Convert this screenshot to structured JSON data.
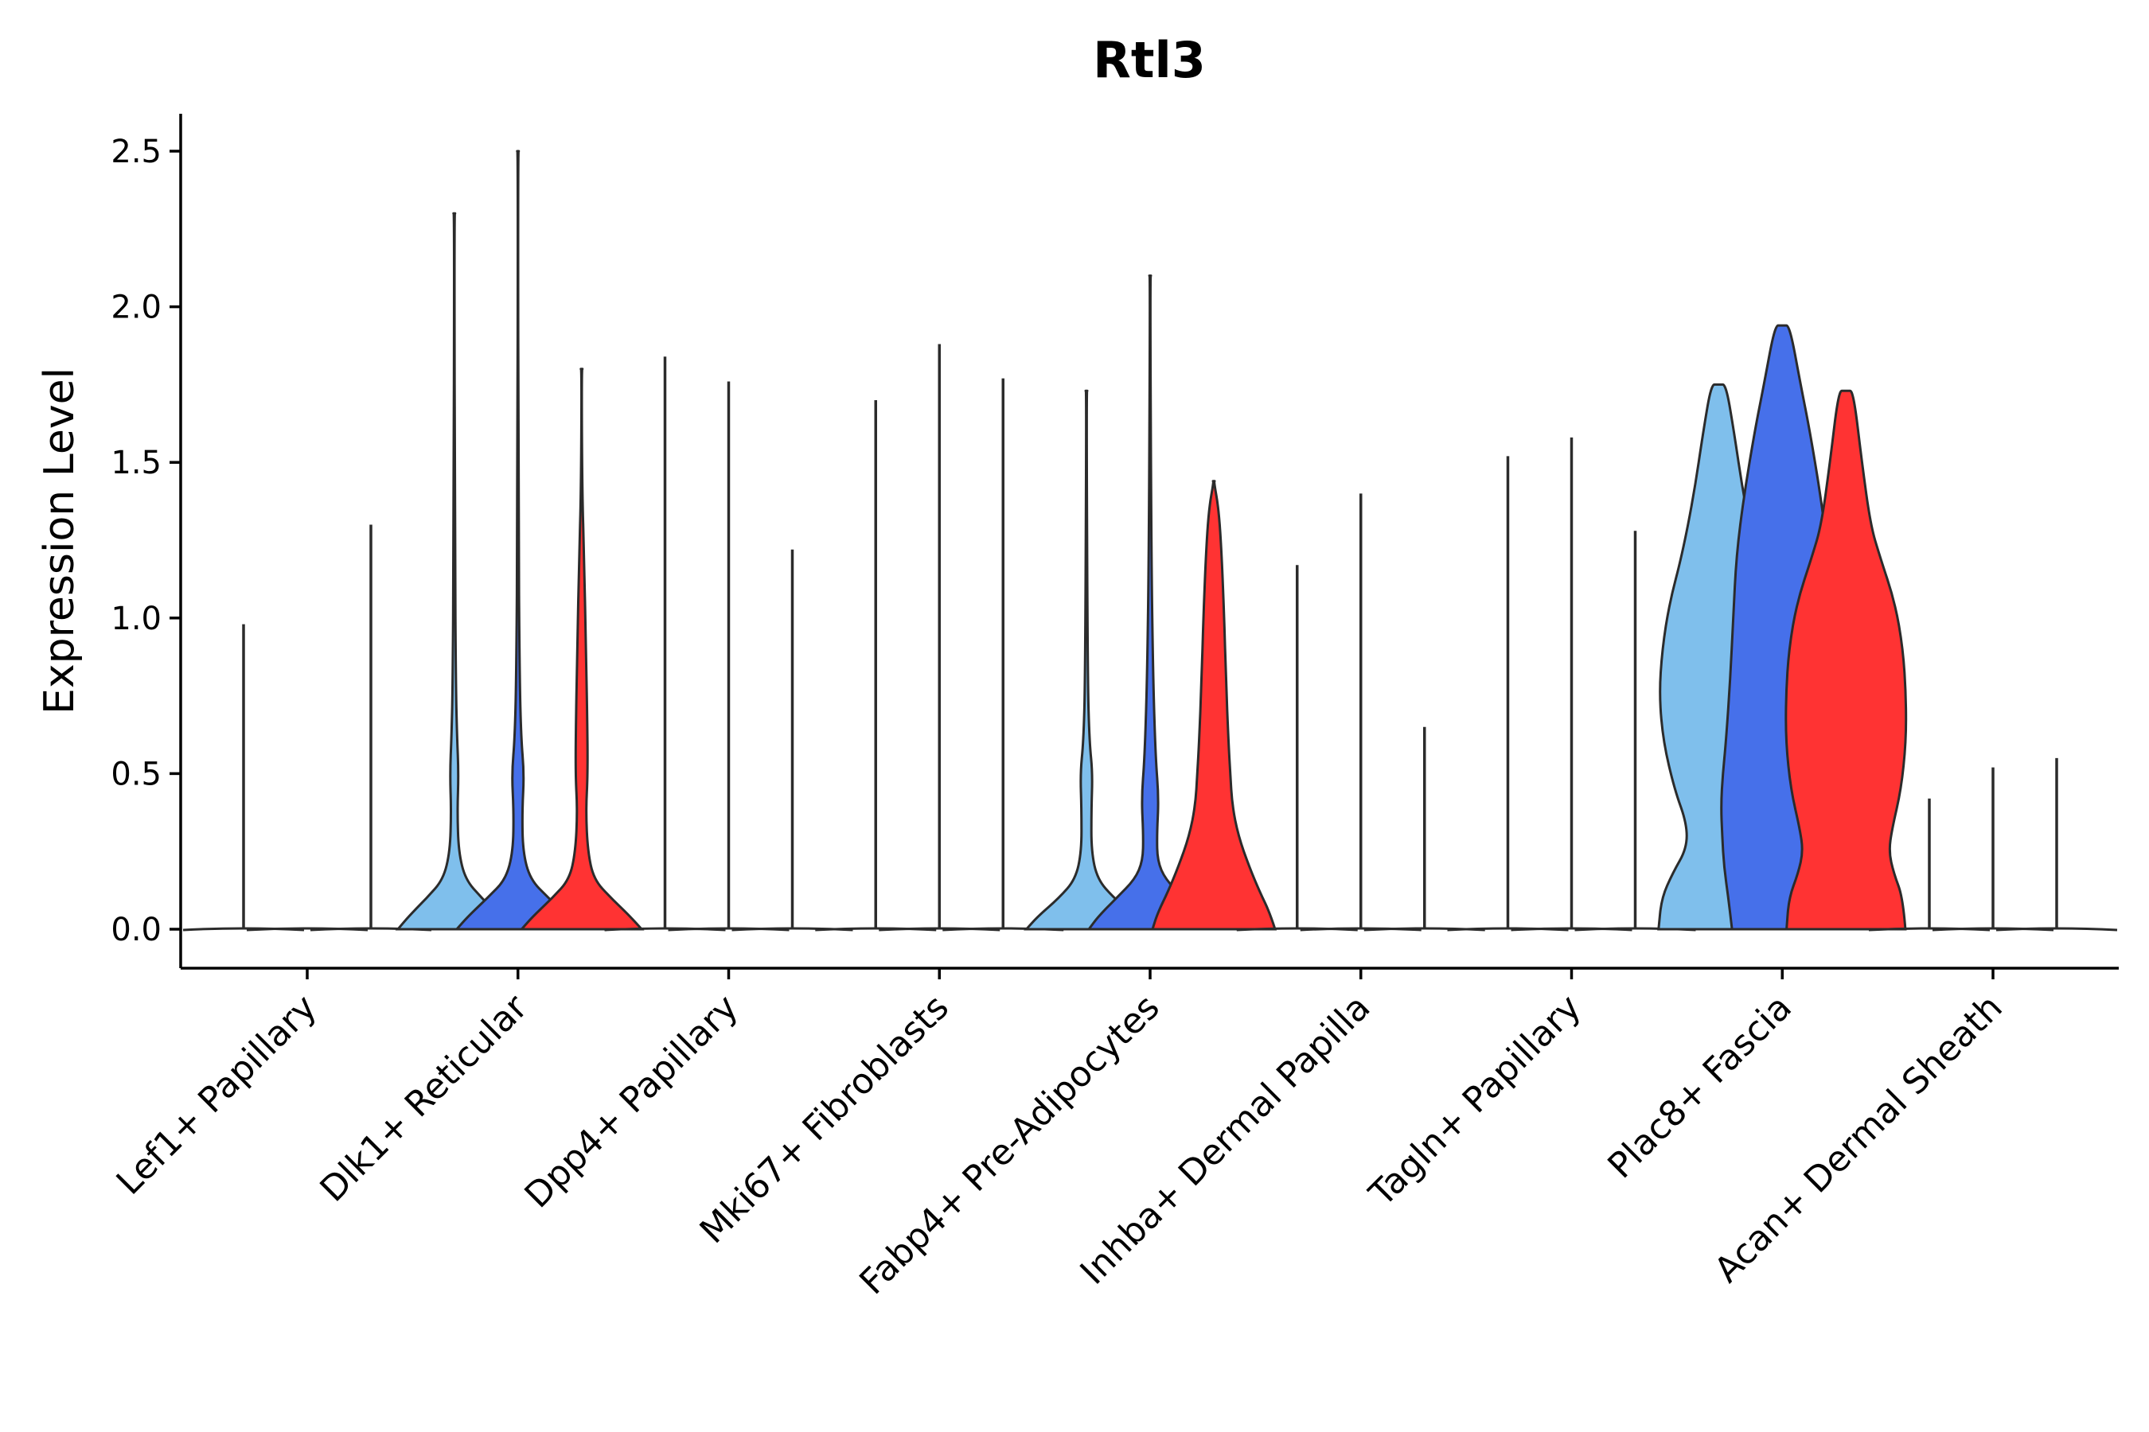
{
  "chart_data": {
    "type": "violin",
    "title": "Rtl3",
    "xlabel": "",
    "ylabel": "Expression Level",
    "ylim": [
      -0.13,
      2.62
    ],
    "yticks": [
      0.0,
      0.5,
      1.0,
      1.5,
      2.0,
      2.5
    ],
    "ytick_labels": [
      "0.0",
      "0.5",
      "1.0",
      "1.5",
      "2.0",
      "2.5"
    ],
    "grid": false,
    "legend": "none",
    "series_colors": [
      "#7fbfec",
      "#4670ea",
      "#ff3333"
    ],
    "categories": [
      "Lef1+ Papillary",
      "Dlk1+ Reticular",
      "Dpp4+ Papillary",
      "Mki67+ Fibroblasts",
      "Fabp4+ Pre-Adipocytes",
      "Inhba+ Dermal Papilla",
      "Tagln+ Papillary",
      "Plac8+ Fascia",
      "Acan+ Dermal Sheath"
    ],
    "violins": [
      [
        {
          "max": 0.98,
          "profile": [
            [
              0,
              0.0
            ],
            [
              0.01,
              0.02
            ],
            [
              0.03,
              0.004
            ],
            [
              0.98,
              0.0
            ]
          ]
        },
        {
          "max": 0.0,
          "profile": [
            [
              0,
              0.0
            ]
          ]
        },
        {
          "max": 1.3,
          "profile": [
            [
              0,
              0.0
            ],
            [
              0.01,
              0.02
            ],
            [
              0.03,
              0.004
            ],
            [
              1.3,
              0.0
            ]
          ]
        }
      ],
      [
        {
          "max": 2.3,
          "profile": [
            [
              0,
              0.92
            ],
            [
              0.04,
              0.75
            ],
            [
              0.1,
              0.45
            ],
            [
              0.16,
              0.18
            ],
            [
              0.25,
              0.07
            ],
            [
              0.38,
              0.05
            ],
            [
              0.5,
              0.07
            ],
            [
              0.62,
              0.045
            ],
            [
              0.8,
              0.025
            ],
            [
              1.2,
              0.012
            ],
            [
              2.3,
              0.0
            ]
          ]
        },
        {
          "max": 2.5,
          "profile": [
            [
              0,
              1.0
            ],
            [
              0.04,
              0.82
            ],
            [
              0.1,
              0.5
            ],
            [
              0.16,
              0.2
            ],
            [
              0.25,
              0.08
            ],
            [
              0.38,
              0.07
            ],
            [
              0.5,
              0.1
            ],
            [
              0.62,
              0.05
            ],
            [
              0.85,
              0.025
            ],
            [
              1.3,
              0.01
            ],
            [
              2.5,
              0.0
            ]
          ]
        },
        {
          "max": 1.8,
          "profile": [
            [
              0,
              0.98
            ],
            [
              0.04,
              0.8
            ],
            [
              0.1,
              0.48
            ],
            [
              0.16,
              0.2
            ],
            [
              0.25,
              0.1
            ],
            [
              0.38,
              0.07
            ],
            [
              0.5,
              0.1
            ],
            [
              0.7,
              0.09
            ],
            [
              0.9,
              0.07
            ],
            [
              1.2,
              0.04
            ],
            [
              1.4,
              0.01
            ],
            [
              1.8,
              0.0
            ]
          ]
        }
      ],
      [
        {
          "max": 1.84,
          "profile": [
            [
              0,
              0.0
            ],
            [
              0.01,
              0.02
            ],
            [
              0.03,
              0.004
            ],
            [
              1.84,
              0.0
            ]
          ]
        },
        {
          "max": 1.76,
          "profile": [
            [
              0,
              0.0
            ],
            [
              0.01,
              0.02
            ],
            [
              0.03,
              0.004
            ],
            [
              1.76,
              0.0
            ]
          ]
        },
        {
          "max": 1.22,
          "profile": [
            [
              0,
              0.0
            ],
            [
              0.01,
              0.02
            ],
            [
              0.03,
              0.004
            ],
            [
              1.22,
              0.0
            ]
          ]
        }
      ],
      [
        {
          "max": 1.7,
          "profile": [
            [
              0,
              0.0
            ],
            [
              0.01,
              0.02
            ],
            [
              0.03,
              0.004
            ],
            [
              1.7,
              0.0
            ]
          ]
        },
        {
          "max": 1.88,
          "profile": [
            [
              0,
              0.0
            ],
            [
              0.01,
              0.02
            ],
            [
              0.03,
              0.004
            ],
            [
              1.88,
              0.0
            ]
          ]
        },
        {
          "max": 1.77,
          "profile": [
            [
              0,
              0.0
            ],
            [
              0.01,
              0.02
            ],
            [
              0.03,
              0.004
            ],
            [
              1.77,
              0.0
            ]
          ]
        }
      ],
      [
        {
          "max": 1.73,
          "profile": [
            [
              0,
              0.98
            ],
            [
              0.04,
              0.8
            ],
            [
              0.1,
              0.45
            ],
            [
              0.16,
              0.18
            ],
            [
              0.25,
              0.08
            ],
            [
              0.38,
              0.08
            ],
            [
              0.5,
              0.1
            ],
            [
              0.6,
              0.05
            ],
            [
              0.8,
              0.02
            ],
            [
              1.73,
              0.0
            ]
          ]
        },
        {
          "max": 2.1,
          "profile": [
            [
              0,
              1.0
            ],
            [
              0.04,
              0.85
            ],
            [
              0.1,
              0.55
            ],
            [
              0.16,
              0.25
            ],
            [
              0.22,
              0.12
            ],
            [
              0.3,
              0.11
            ],
            [
              0.42,
              0.14
            ],
            [
              0.55,
              0.09
            ],
            [
              0.8,
              0.05
            ],
            [
              1.2,
              0.02
            ],
            [
              2.1,
              0.0
            ]
          ]
        },
        {
          "max": 1.44,
          "profile": [
            [
              0,
              1.0
            ],
            [
              0.05,
              0.92
            ],
            [
              0.12,
              0.75
            ],
            [
              0.2,
              0.58
            ],
            [
              0.3,
              0.4
            ],
            [
              0.4,
              0.3
            ],
            [
              0.5,
              0.27
            ],
            [
              0.6,
              0.24
            ],
            [
              0.8,
              0.2
            ],
            [
              1.0,
              0.17
            ],
            [
              1.2,
              0.13
            ],
            [
              1.35,
              0.08
            ],
            [
              1.44,
              0.0
            ]
          ]
        }
      ],
      [
        {
          "max": 1.17,
          "profile": [
            [
              0,
              0.0
            ],
            [
              0.01,
              0.02
            ],
            [
              0.03,
              0.004
            ],
            [
              1.17,
              0.0
            ]
          ]
        },
        {
          "max": 1.4,
          "profile": [
            [
              0,
              0.0
            ],
            [
              0.01,
              0.02
            ],
            [
              0.03,
              0.004
            ],
            [
              1.4,
              0.0
            ]
          ]
        },
        {
          "max": 0.65,
          "profile": [
            [
              0,
              0.0
            ],
            [
              0.01,
              0.02
            ],
            [
              0.03,
              0.004
            ],
            [
              0.65,
              0.0
            ]
          ]
        }
      ],
      [
        {
          "max": 1.52,
          "profile": [
            [
              0,
              0.0
            ],
            [
              0.01,
              0.02
            ],
            [
              0.03,
              0.004
            ],
            [
              1.52,
              0.0
            ]
          ]
        },
        {
          "max": 1.58,
          "profile": [
            [
              0,
              0.0
            ],
            [
              0.01,
              0.02
            ],
            [
              0.03,
              0.004
            ],
            [
              1.58,
              0.0
            ]
          ]
        },
        {
          "max": 1.28,
          "profile": [
            [
              0,
              0.0
            ],
            [
              0.01,
              0.02
            ],
            [
              0.03,
              0.004
            ],
            [
              1.28,
              0.0
            ]
          ]
        }
      ],
      [
        {
          "max": 1.75,
          "profile": [
            [
              0,
              0.98
            ],
            [
              0.1,
              0.93
            ],
            [
              0.18,
              0.75
            ],
            [
              0.26,
              0.52
            ],
            [
              0.34,
              0.52
            ],
            [
              0.45,
              0.72
            ],
            [
              0.6,
              0.9
            ],
            [
              0.75,
              0.97
            ],
            [
              0.9,
              0.92
            ],
            [
              1.05,
              0.8
            ],
            [
              1.2,
              0.6
            ],
            [
              1.4,
              0.4
            ],
            [
              1.6,
              0.25
            ],
            [
              1.75,
              0.12
            ]
          ]
        },
        {
          "max": 1.94,
          "profile": [
            [
              0,
              0.82
            ],
            [
              0.1,
              0.88
            ],
            [
              0.2,
              0.95
            ],
            [
              0.3,
              0.98
            ],
            [
              0.4,
              1.0
            ],
            [
              0.5,
              0.97
            ],
            [
              0.6,
              0.92
            ],
            [
              0.8,
              0.85
            ],
            [
              1.0,
              0.8
            ],
            [
              1.2,
              0.75
            ],
            [
              1.4,
              0.62
            ],
            [
              1.6,
              0.45
            ],
            [
              1.75,
              0.3
            ],
            [
              1.94,
              0.12
            ]
          ]
        },
        {
          "max": 1.73,
          "profile": [
            [
              0,
              0.97
            ],
            [
              0.1,
              0.93
            ],
            [
              0.18,
              0.78
            ],
            [
              0.25,
              0.7
            ],
            [
              0.32,
              0.75
            ],
            [
              0.45,
              0.9
            ],
            [
              0.6,
              0.98
            ],
            [
              0.75,
              0.98
            ],
            [
              0.9,
              0.93
            ],
            [
              1.05,
              0.8
            ],
            [
              1.2,
              0.55
            ],
            [
              1.3,
              0.4
            ],
            [
              1.5,
              0.26
            ],
            [
              1.73,
              0.12
            ]
          ]
        }
      ],
      [
        {
          "max": 0.42,
          "profile": [
            [
              0,
              0.0
            ],
            [
              0.01,
              0.02
            ],
            [
              0.03,
              0.004
            ],
            [
              0.42,
              0.0
            ]
          ]
        },
        {
          "max": 0.52,
          "profile": [
            [
              0,
              0.0
            ],
            [
              0.01,
              0.02
            ],
            [
              0.03,
              0.004
            ],
            [
              0.52,
              0.0
            ]
          ]
        },
        {
          "max": 0.55,
          "profile": [
            [
              0,
              0.0
            ],
            [
              0.01,
              0.02
            ],
            [
              0.03,
              0.004
            ],
            [
              0.55,
              0.0
            ]
          ]
        }
      ]
    ]
  }
}
